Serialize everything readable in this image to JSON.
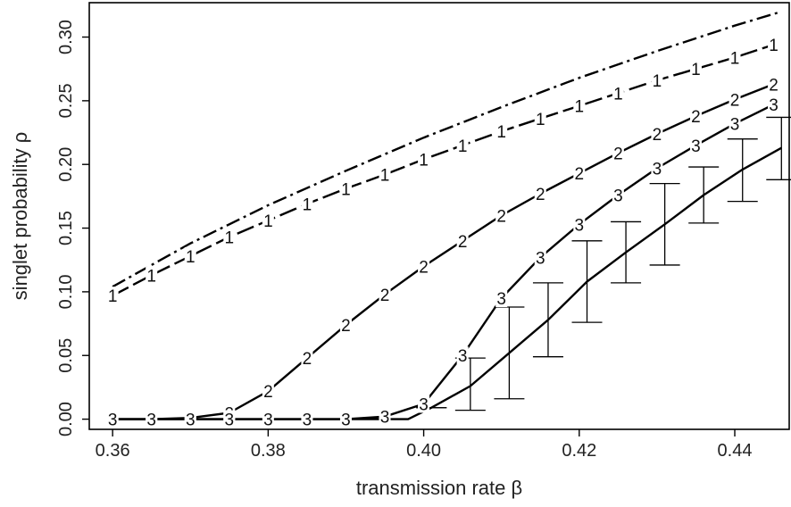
{
  "chart_data": {
    "type": "line",
    "title": "",
    "xlabel": "transmission rate β",
    "ylabel": "singlet probability ρ",
    "xlim": [
      0.357,
      0.447
    ],
    "ylim": [
      -0.008,
      0.327
    ],
    "x_ticks": [
      0.36,
      0.38,
      0.4,
      0.42,
      0.44
    ],
    "x_tick_labels": [
      "0.36",
      "0.38",
      "0.40",
      "0.42",
      "0.44"
    ],
    "y_ticks": [
      0.0,
      0.05,
      0.1,
      0.15,
      0.2,
      0.25,
      0.3
    ],
    "y_tick_labels": [
      "0.00",
      "0.05",
      "0.10",
      "0.15",
      "0.20",
      "0.25",
      "0.30"
    ],
    "grid": false,
    "legend": "none",
    "series": [
      {
        "style": "dashdot",
        "x": [
          0.36,
          0.37,
          0.38,
          0.39,
          0.4,
          0.41,
          0.42,
          0.43,
          0.44,
          0.446
        ],
        "y": [
          0.104,
          0.138,
          0.168,
          0.195,
          0.221,
          0.245,
          0.268,
          0.289,
          0.309,
          0.32
        ]
      },
      {
        "style": "longdash",
        "marker": "1",
        "x": [
          0.36,
          0.365,
          0.37,
          0.375,
          0.38,
          0.385,
          0.39,
          0.395,
          0.4,
          0.405,
          0.41,
          0.415,
          0.42,
          0.425,
          0.43,
          0.435,
          0.44,
          0.445
        ],
        "y": [
          0.097,
          0.113,
          0.128,
          0.143,
          0.156,
          0.169,
          0.181,
          0.192,
          0.204,
          0.215,
          0.226,
          0.236,
          0.246,
          0.256,
          0.266,
          0.275,
          0.284,
          0.294
        ]
      },
      {
        "style": "solid",
        "marker": "2",
        "x": [
          0.36,
          0.365,
          0.37,
          0.375,
          0.38,
          0.385,
          0.39,
          0.395,
          0.4,
          0.405,
          0.41,
          0.415,
          0.42,
          0.425,
          0.43,
          0.435,
          0.44,
          0.445
        ],
        "y": [
          0.0,
          0.0,
          0.001,
          0.005,
          0.022,
          0.048,
          0.074,
          0.098,
          0.12,
          0.14,
          0.16,
          0.177,
          0.193,
          0.209,
          0.224,
          0.238,
          0.251,
          0.263
        ]
      },
      {
        "style": "solid",
        "marker": "3",
        "x": [
          0.36,
          0.365,
          0.37,
          0.375,
          0.38,
          0.385,
          0.39,
          0.395,
          0.4,
          0.405,
          0.41,
          0.415,
          0.42,
          0.425,
          0.43,
          0.435,
          0.44,
          0.445
        ],
        "y": [
          0.0,
          0.0,
          0.0,
          0.0,
          0.0,
          0.0,
          0.0,
          0.002,
          0.012,
          0.05,
          0.095,
          0.127,
          0.153,
          0.176,
          0.197,
          0.215,
          0.232,
          0.247
        ]
      },
      {
        "style": "solid",
        "x": [
          0.36,
          0.37,
          0.38,
          0.39,
          0.398,
          0.401,
          0.406,
          0.411,
          0.416,
          0.421,
          0.426,
          0.431,
          0.436,
          0.441,
          0.446
        ],
        "y": [
          0.0,
          0.0,
          0.0,
          0.0,
          0.0,
          0.009,
          0.026,
          0.052,
          0.078,
          0.108,
          0.131,
          0.153,
          0.176,
          0.196,
          0.213
        ],
        "error_bars": {
          "x": [
            0.401,
            0.406,
            0.411,
            0.416,
            0.421,
            0.426,
            0.431,
            0.436,
            0.441,
            0.446
          ],
          "low": [
            0.009,
            0.007,
            0.016,
            0.049,
            0.076,
            0.107,
            0.121,
            0.154,
            0.171,
            0.188
          ],
          "high": [
            0.009,
            0.048,
            0.088,
            0.107,
            0.14,
            0.155,
            0.185,
            0.198,
            0.22,
            0.237
          ]
        }
      }
    ]
  }
}
